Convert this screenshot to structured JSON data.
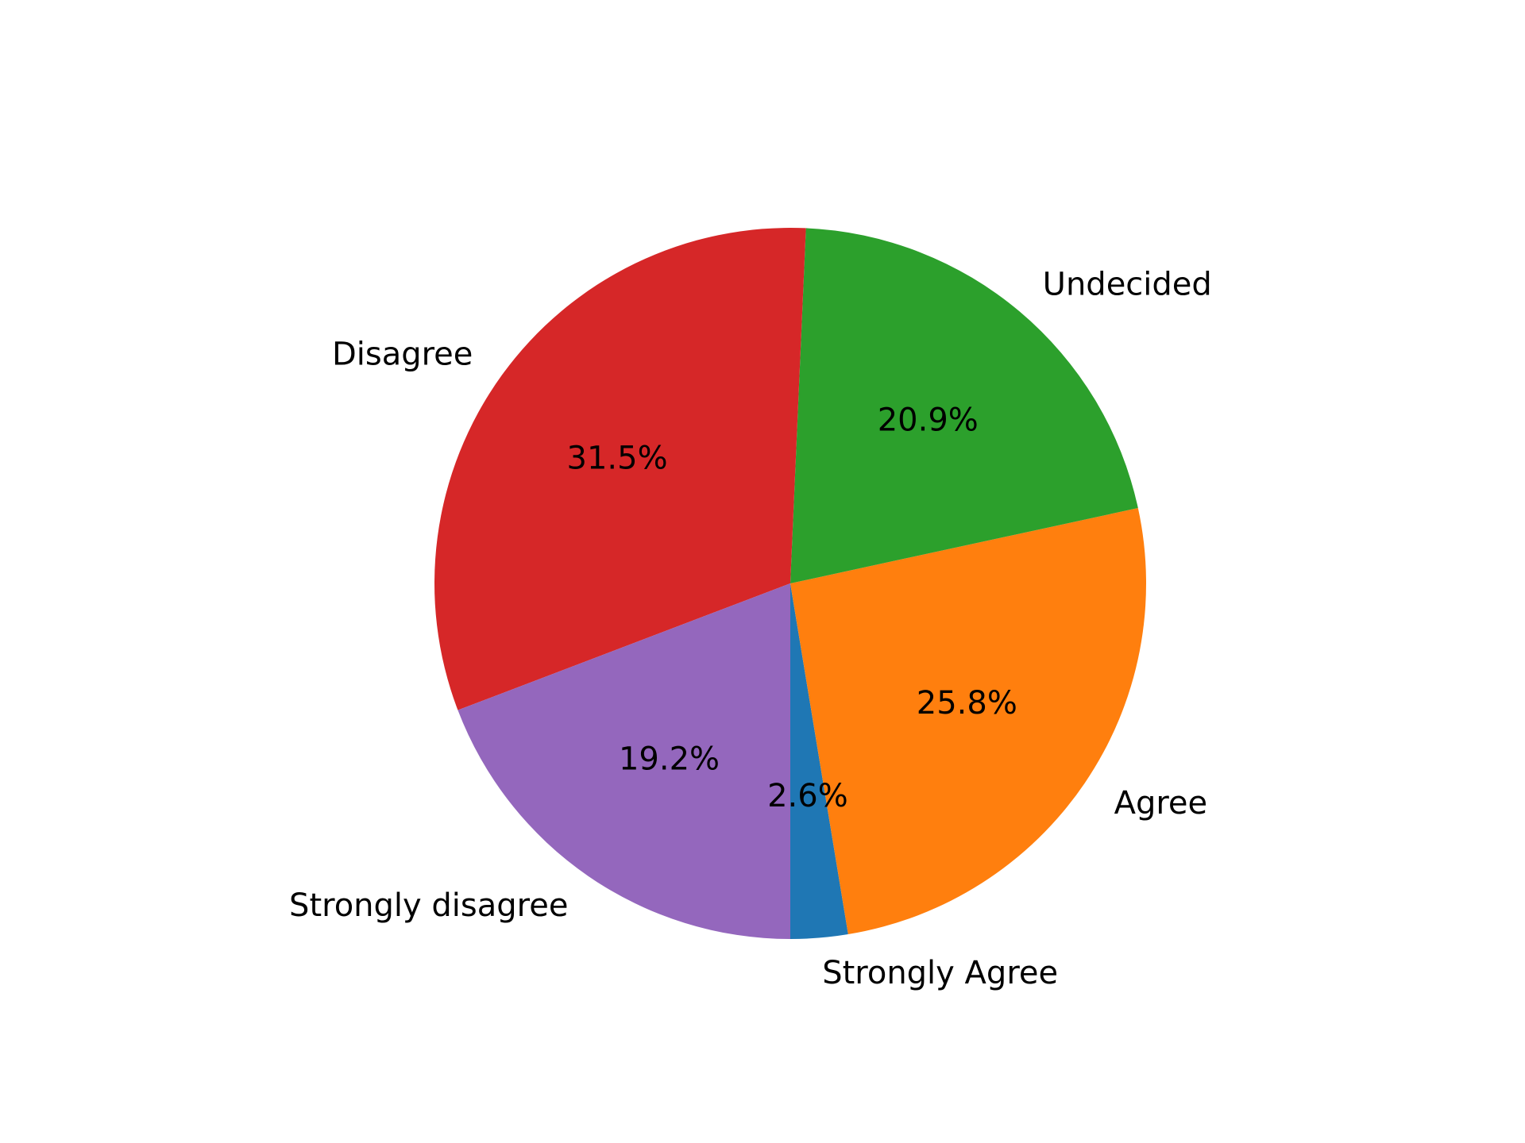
{
  "chart_data": {
    "type": "pie",
    "title": "",
    "start_angle_deg": -90,
    "direction": "counterclockwise",
    "slices": [
      {
        "label": "Strongly Agree",
        "value": 2.6,
        "pct_label": "2.6%",
        "color": "#1f77b4"
      },
      {
        "label": "Agree",
        "value": 25.8,
        "pct_label": "25.8%",
        "color": "#ff7f0e"
      },
      {
        "label": "Undecided",
        "value": 20.9,
        "pct_label": "20.9%",
        "color": "#2ca02c"
      },
      {
        "label": "Disagree",
        "value": 31.5,
        "pct_label": "31.5%",
        "color": "#d62728"
      },
      {
        "label": "Strongly disagree",
        "value": 19.2,
        "pct_label": "19.2%",
        "color": "#9467bd"
      }
    ]
  }
}
